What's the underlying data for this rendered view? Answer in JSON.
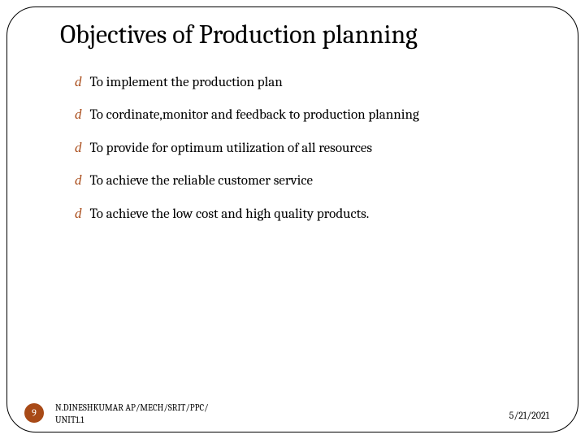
{
  "title": "Objectives of Production planning",
  "bullets": [
    "To implement the production plan",
    "To cordinate,monitor and feedback to production planning",
    "To provide for optimum utilization of all resources",
    "To achieve the reliable customer service",
    "To achieve the low cost and high quality products."
  ],
  "page_number": "9",
  "footer_author_line1": "N.DINESHKUMAR AP/MECH/SRIT/PPC/",
  "footer_author_line2": "UNIT1.1",
  "footer_date": "5/21/2021",
  "colors": {
    "accent": "#a84a17",
    "text": "#000000",
    "background": "#ffffff",
    "border": "#000000"
  },
  "bullet_glyph": "d"
}
